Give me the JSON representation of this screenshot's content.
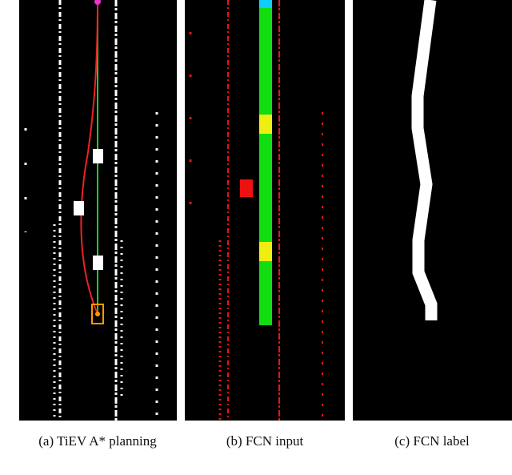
{
  "figure": {
    "captions": [
      "(a) TiEV A* planning",
      "(b) FCN input",
      "(c) FCN label"
    ]
  }
}
